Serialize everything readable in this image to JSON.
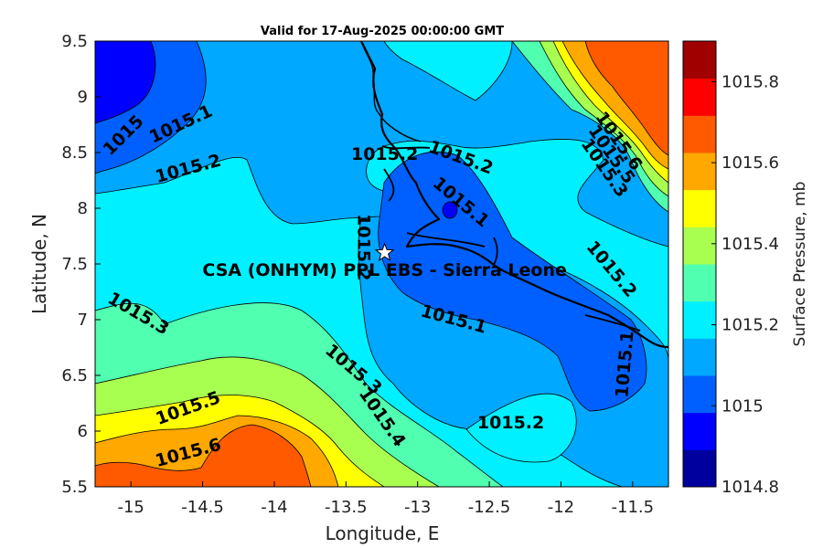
{
  "title": "Valid for 17-Aug-2025 00:00:00 GMT",
  "x_axis": {
    "label": "Longitude, E",
    "range": [
      -15.25,
      -11.25
    ],
    "ticks": [
      "-15",
      "-14.5",
      "-14",
      "-13.5",
      "-13",
      "-12.5",
      "-12",
      "-11.5"
    ]
  },
  "y_axis": {
    "label": "Latitude, N",
    "range": [
      5.5,
      9.5
    ],
    "ticks": [
      "5.5",
      "6",
      "6.5",
      "7",
      "7.5",
      "8",
      "8.5",
      "9",
      "9.5"
    ]
  },
  "colorbar": {
    "label": "Surface Pressure, mb",
    "range": [
      1014.8,
      1015.9
    ],
    "tick_labels": [
      "1014.8",
      "1015",
      "1015.2",
      "1015.4",
      "1015.6",
      "1015.8"
    ],
    "colors": [
      "#00009f",
      "#0000ff",
      "#0060ff",
      "#00a8ff",
      "#00f0ff",
      "#50ffb0",
      "#a8ff50",
      "#ffff00",
      "#ffa800",
      "#ff5a00",
      "#ff0000",
      "#a00000"
    ]
  },
  "site": {
    "name": "CSA (ONHYM) PPL EBS  - Sierra Leone",
    "lon": -13.23,
    "lat": 7.6,
    "marker": "star-icon"
  },
  "contour_labels": [
    {
      "text": "1015",
      "lon": -15.05,
      "lat": 8.65
    },
    {
      "text": "1015.1",
      "lon": -14.65,
      "lat": 8.75
    },
    {
      "text": "1015.2",
      "lon": -14.6,
      "lat": 8.35
    },
    {
      "text": "1015.2",
      "lon": -13.23,
      "lat": 8.48
    },
    {
      "text": "1015.2",
      "lon": -12.7,
      "lat": 8.45
    },
    {
      "text": "1015.1",
      "lon": -12.7,
      "lat": 8.05
    },
    {
      "text": "1015.2",
      "lon": -13.38,
      "lat": 7.65
    },
    {
      "text": "1015.2",
      "lon": -11.65,
      "lat": 7.45
    },
    {
      "text": "1015.6",
      "lon": -11.6,
      "lat": 8.6
    },
    {
      "text": "1015.5",
      "lon": -11.65,
      "lat": 8.48
    },
    {
      "text": "1015.3",
      "lon": -11.7,
      "lat": 8.36
    },
    {
      "text": "1015.3",
      "lon": -14.95,
      "lat": 7.05
    },
    {
      "text": "1015.1",
      "lon": -12.75,
      "lat": 7.0
    },
    {
      "text": "1015.3",
      "lon": -13.45,
      "lat": 6.55
    },
    {
      "text": "1015.4",
      "lon": -13.25,
      "lat": 6.12
    },
    {
      "text": "1015.5",
      "lon": -14.6,
      "lat": 6.2
    },
    {
      "text": "1015.6",
      "lon": -14.6,
      "lat": 5.8
    },
    {
      "text": "1015.2",
      "lon": -12.35,
      "lat": 6.07
    },
    {
      "text": "1015.1",
      "lon": -11.55,
      "lat": 6.6
    }
  ]
}
